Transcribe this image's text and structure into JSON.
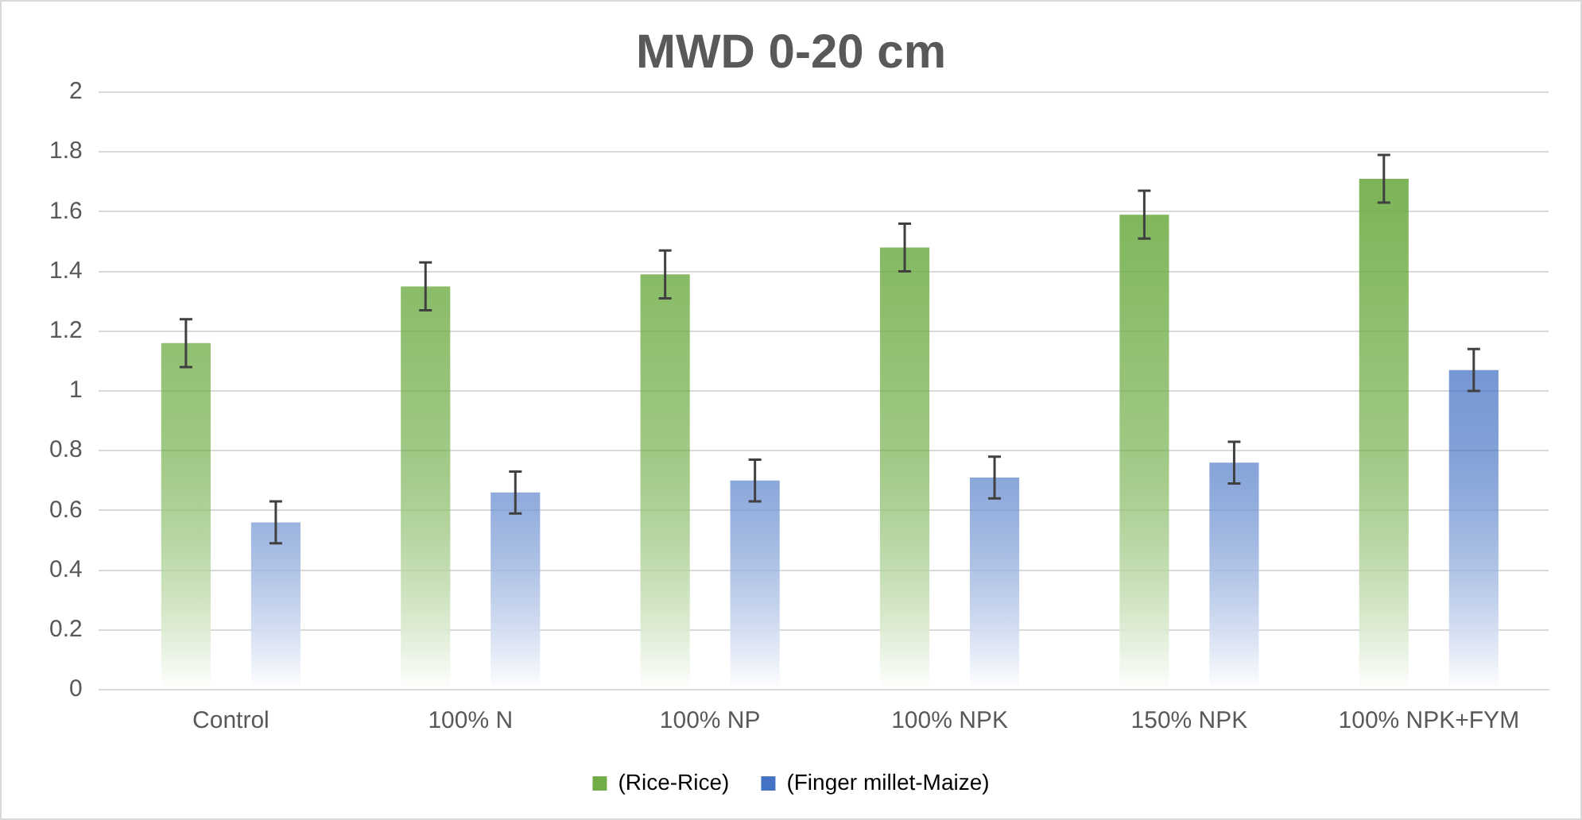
{
  "chart_data": {
    "type": "bar",
    "title": "MWD 0-20 cm",
    "categories": [
      "Control",
      "100% N",
      "100% NP",
      "100% NPK",
      "150% NPK",
      "100% NPK+FYM"
    ],
    "series": [
      {
        "name": "(Rice-Rice)",
        "color": "#70ad47",
        "values": [
          1.16,
          1.35,
          1.39,
          1.48,
          1.59,
          1.71
        ],
        "errors": [
          0.08,
          0.08,
          0.08,
          0.08,
          0.08,
          0.08
        ]
      },
      {
        "name": "(Finger millet-Maize)",
        "color": "#4472c4",
        "values": [
          0.56,
          0.66,
          0.7,
          0.71,
          0.76,
          1.07
        ],
        "errors": [
          0.07,
          0.07,
          0.07,
          0.07,
          0.07,
          0.07
        ]
      }
    ],
    "ylim": [
      0,
      2
    ],
    "yticks": [
      0,
      0.2,
      0.4,
      0.6,
      0.8,
      1,
      1.2,
      1.4,
      1.6,
      1.8,
      2
    ],
    "grid": "y",
    "legend": "bottom"
  }
}
